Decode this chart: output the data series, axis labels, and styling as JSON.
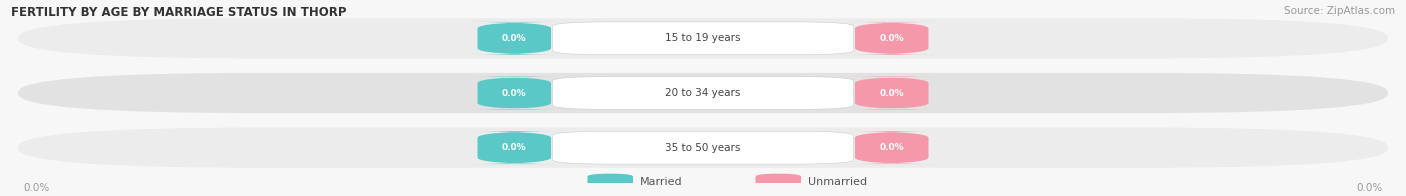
{
  "title": "FERTILITY BY AGE BY MARRIAGE STATUS IN THORP",
  "source": "Source: ZipAtlas.com",
  "categories": [
    "15 to 19 years",
    "20 to 34 years",
    "35 to 50 years"
  ],
  "married_values": [
    0.0,
    0.0,
    0.0
  ],
  "unmarried_values": [
    0.0,
    0.0,
    0.0
  ],
  "married_color": "#5bc8c8",
  "unmarried_color": "#f498aa",
  "bar_bg_color_light": "#ececec",
  "bar_bg_color_dark": "#e2e2e2",
  "row_sep_color": "#ffffff",
  "category_color": "#444444",
  "axis_label_color": "#999999",
  "title_color": "#333333",
  "source_color": "#999999",
  "legend_text_color": "#555555",
  "figsize": [
    14.06,
    1.96
  ],
  "dpi": 100,
  "title_fontsize": 8.5,
  "source_fontsize": 7.5,
  "bar_height": 0.72,
  "pill_fontsize": 6.5,
  "category_fontsize": 7.5
}
